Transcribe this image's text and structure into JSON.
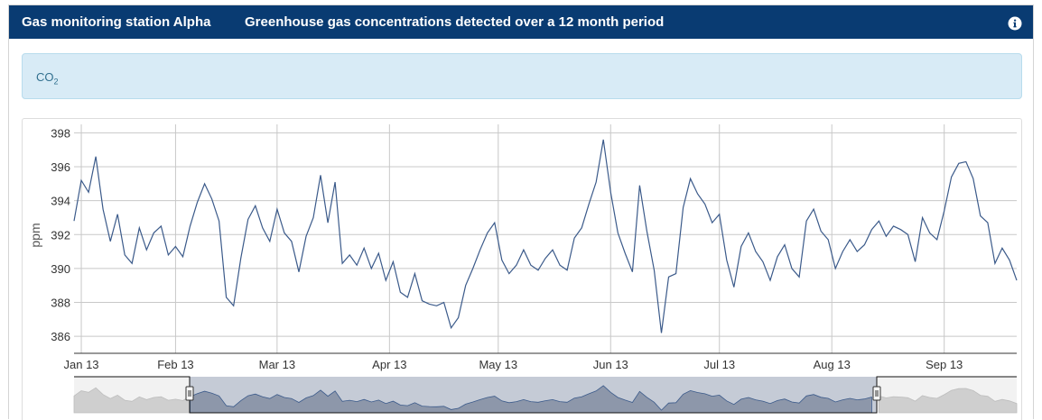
{
  "header": {
    "station": "Gas monitoring station Alpha",
    "description": "Greenhouse gas concentrations detected over a 12 month period"
  },
  "gas": {
    "label_main": "CO",
    "label_sub": "2"
  },
  "colors": {
    "header_bg": "#093b72",
    "line": "#3b5a8a",
    "info_bg": "#d8ebf6",
    "info_text": "#31708f"
  },
  "icons": {
    "info": "info-circle-icon",
    "handle": "range-handle-icon"
  },
  "chart_data": {
    "type": "line",
    "ylabel": "ppm",
    "ylim": [
      385,
      398.5
    ],
    "yticks": [
      386,
      388,
      390,
      392,
      394,
      396,
      398
    ],
    "grid": true,
    "x_range": [
      "2013-01-04",
      "2013-09-21"
    ],
    "month_ticks": [
      {
        "label": "Jan 13",
        "date": "2013-01-06"
      },
      {
        "label": "Feb 13",
        "date": "2013-02-01"
      },
      {
        "label": "Mar 13",
        "date": "2013-03-01"
      },
      {
        "label": "Apr 13",
        "date": "2013-04-01"
      },
      {
        "label": "May 13",
        "date": "2013-05-01"
      },
      {
        "label": "Jun 13",
        "date": "2013-06-01"
      },
      {
        "label": "Jul 13",
        "date": "2013-07-01"
      },
      {
        "label": "Aug 13",
        "date": "2013-08-01"
      },
      {
        "label": "Sep 13",
        "date": "2013-09-01"
      }
    ],
    "series": [
      {
        "x": [
          "2013-01-04",
          "2013-01-06",
          "2013-01-08",
          "2013-01-10",
          "2013-01-12",
          "2013-01-14",
          "2013-01-16",
          "2013-01-18",
          "2013-01-20",
          "2013-01-22",
          "2013-01-24",
          "2013-01-26",
          "2013-01-28",
          "2013-01-30",
          "2013-02-01",
          "2013-02-03",
          "2013-02-05",
          "2013-02-07",
          "2013-02-09",
          "2013-02-11",
          "2013-02-13",
          "2013-02-15",
          "2013-02-17",
          "2013-02-19",
          "2013-02-21",
          "2013-02-23",
          "2013-02-25",
          "2013-02-27",
          "2013-03-01",
          "2013-03-03",
          "2013-03-05",
          "2013-03-07",
          "2013-03-09",
          "2013-03-11",
          "2013-03-13",
          "2013-03-15",
          "2013-03-17",
          "2013-03-19",
          "2013-03-21",
          "2013-03-23",
          "2013-03-25",
          "2013-03-27",
          "2013-03-29",
          "2013-03-31",
          "2013-04-02",
          "2013-04-04",
          "2013-04-06",
          "2013-04-08",
          "2013-04-10",
          "2013-04-12",
          "2013-04-14",
          "2013-04-16",
          "2013-04-18",
          "2013-04-20",
          "2013-04-22",
          "2013-04-24",
          "2013-04-26",
          "2013-04-28",
          "2013-04-30",
          "2013-05-02",
          "2013-05-04",
          "2013-05-06",
          "2013-05-08",
          "2013-05-10",
          "2013-05-12",
          "2013-05-14",
          "2013-05-16",
          "2013-05-18",
          "2013-05-20",
          "2013-05-22",
          "2013-05-24",
          "2013-05-26",
          "2013-05-28",
          "2013-05-30",
          "2013-06-01",
          "2013-06-03",
          "2013-06-05",
          "2013-06-07",
          "2013-06-09",
          "2013-06-11",
          "2013-06-13",
          "2013-06-15",
          "2013-06-17",
          "2013-06-19",
          "2013-06-21",
          "2013-06-23",
          "2013-06-25",
          "2013-06-27",
          "2013-06-29",
          "2013-07-01",
          "2013-07-03",
          "2013-07-05",
          "2013-07-07",
          "2013-07-09",
          "2013-07-11",
          "2013-07-13",
          "2013-07-15",
          "2013-07-17",
          "2013-07-19",
          "2013-07-21",
          "2013-07-23",
          "2013-07-25",
          "2013-07-27",
          "2013-07-29",
          "2013-07-31",
          "2013-08-02",
          "2013-08-04",
          "2013-08-06",
          "2013-08-08",
          "2013-08-10",
          "2013-08-12",
          "2013-08-14",
          "2013-08-16",
          "2013-08-18",
          "2013-08-20",
          "2013-08-22",
          "2013-08-24",
          "2013-08-26",
          "2013-08-28",
          "2013-08-30",
          "2013-09-01",
          "2013-09-03",
          "2013-09-05",
          "2013-09-07",
          "2013-09-09",
          "2013-09-11",
          "2013-09-13",
          "2013-09-15",
          "2013-09-17",
          "2013-09-19",
          "2013-09-21"
        ],
        "y": [
          392.8,
          395.2,
          394.5,
          396.6,
          393.5,
          391.6,
          393.2,
          390.8,
          390.3,
          392.4,
          391.1,
          392.1,
          392.5,
          390.8,
          391.3,
          390.7,
          392.5,
          393.9,
          395.0,
          394.1,
          392.8,
          388.3,
          387.8,
          390.6,
          392.9,
          393.7,
          392.4,
          391.6,
          393.5,
          392.1,
          391.6,
          389.8,
          391.9,
          393.0,
          395.5,
          392.7,
          395.1,
          390.3,
          390.8,
          390.2,
          391.2,
          390.0,
          390.9,
          389.3,
          390.4,
          388.6,
          388.3,
          389.7,
          388.1,
          387.9,
          387.8,
          388.0,
          386.5,
          387.1,
          389.0,
          390.0,
          391.1,
          392.1,
          392.7,
          390.5,
          389.7,
          390.2,
          391.1,
          390.2,
          389.9,
          390.6,
          391.1,
          390.2,
          389.9,
          391.8,
          392.4,
          393.8,
          395.1,
          397.6,
          394.5,
          392.1,
          390.9,
          389.8,
          394.9,
          392.2,
          389.9,
          386.2,
          389.5,
          389.7,
          393.6,
          395.3,
          394.4,
          393.8,
          392.7,
          393.2,
          390.5,
          388.9,
          391.3,
          392.1,
          391.0,
          390.4,
          389.3,
          390.7,
          391.4,
          390.0,
          389.5,
          392.8,
          393.5,
          392.2,
          391.7,
          390.0,
          391.0,
          391.7,
          391.0,
          391.4,
          392.3,
          392.8,
          391.9,
          392.5,
          392.3,
          392.0,
          390.4,
          393.0,
          392.1,
          391.7,
          393.4,
          395.4,
          396.2,
          396.3,
          395.3,
          393.1,
          392.7,
          390.3,
          391.2,
          390.5,
          389.3
        ]
      }
    ]
  }
}
